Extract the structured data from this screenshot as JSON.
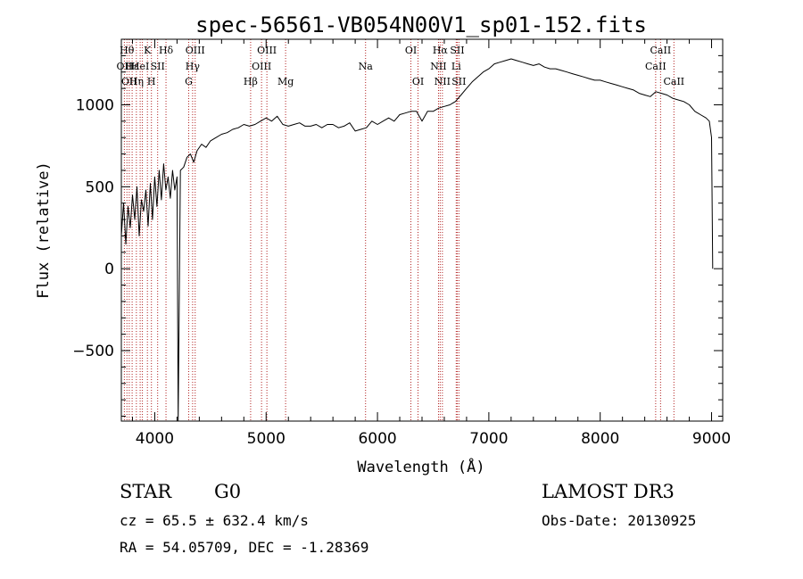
{
  "chart_data": {
    "type": "line",
    "title": "spec-56561-VB054N00V1_sp01-152.fits",
    "xlabel": "Wavelength (Å)",
    "ylabel": "Flux (relative)",
    "xlim": [
      3700,
      9100
    ],
    "ylim": [
      -930,
      1400
    ],
    "x_ticks": [
      4000,
      5000,
      6000,
      7000,
      8000,
      9000
    ],
    "y_ticks": [
      -500,
      0,
      500,
      1000
    ],
    "series": [
      {
        "name": "flux",
        "x": [
          3700,
          3720,
          3740,
          3760,
          3780,
          3800,
          3820,
          3840,
          3860,
          3880,
          3900,
          3920,
          3940,
          3960,
          3980,
          4000,
          4020,
          4040,
          4060,
          4080,
          4100,
          4120,
          4140,
          4160,
          4180,
          4200,
          4210,
          4230,
          4260,
          4290,
          4320,
          4350,
          4380,
          4420,
          4460,
          4500,
          4550,
          4600,
          4650,
          4700,
          4750,
          4800,
          4850,
          4900,
          4950,
          5000,
          5050,
          5100,
          5150,
          5200,
          5250,
          5300,
          5350,
          5400,
          5450,
          5500,
          5550,
          5600,
          5650,
          5700,
          5750,
          5800,
          5850,
          5900,
          5950,
          6000,
          6050,
          6100,
          6150,
          6200,
          6250,
          6300,
          6350,
          6400,
          6450,
          6500,
          6550,
          6600,
          6650,
          6700,
          6750,
          6800,
          6850,
          6900,
          6950,
          7000,
          7050,
          7100,
          7150,
          7200,
          7250,
          7300,
          7350,
          7400,
          7450,
          7500,
          7550,
          7600,
          7650,
          7700,
          7750,
          7800,
          7850,
          7900,
          7950,
          8000,
          8050,
          8100,
          8150,
          8200,
          8250,
          8300,
          8350,
          8400,
          8450,
          8500,
          8550,
          8600,
          8650,
          8700,
          8750,
          8800,
          8850,
          8900,
          8950,
          8980,
          9000,
          9010
        ],
        "y": [
          200,
          400,
          150,
          380,
          250,
          450,
          300,
          500,
          200,
          420,
          350,
          480,
          260,
          520,
          300,
          560,
          380,
          600,
          420,
          640,
          480,
          560,
          430,
          600,
          480,
          560,
          -930,
          600,
          620,
          680,
          700,
          650,
          720,
          760,
          740,
          780,
          800,
          820,
          830,
          850,
          860,
          880,
          870,
          880,
          900,
          920,
          900,
          930,
          880,
          870,
          880,
          890,
          870,
          870,
          880,
          860,
          880,
          880,
          860,
          870,
          890,
          840,
          850,
          860,
          900,
          880,
          900,
          920,
          900,
          940,
          950,
          960,
          960,
          900,
          960,
          960,
          980,
          990,
          1000,
          1020,
          1060,
          1100,
          1140,
          1170,
          1200,
          1220,
          1250,
          1260,
          1270,
          1280,
          1270,
          1260,
          1250,
          1240,
          1250,
          1230,
          1220,
          1220,
          1210,
          1200,
          1190,
          1180,
          1170,
          1160,
          1150,
          1150,
          1140,
          1130,
          1120,
          1110,
          1100,
          1090,
          1070,
          1060,
          1050,
          1080,
          1070,
          1060,
          1040,
          1030,
          1020,
          1000,
          960,
          940,
          920,
          900,
          800,
          0
        ]
      }
    ],
    "lines": [
      {
        "w": 3727,
        "row": 1,
        "label": "OII"
      },
      {
        "w": 3750,
        "row": 0,
        "label": "Hθ"
      },
      {
        "w": 3771,
        "row": 2,
        "label": "OII"
      },
      {
        "w": 3797,
        "row": 1,
        "label": "Hε"
      },
      {
        "w": 3835,
        "row": 2,
        "label": "Hη"
      },
      {
        "w": 3869,
        "row": 1,
        "label": "HeI"
      },
      {
        "w": 3889,
        "row": 2,
        "label": ""
      },
      {
        "w": 3934,
        "row": 0,
        "label": "K"
      },
      {
        "w": 3970,
        "row": 2,
        "label": "H"
      },
      {
        "w": 4026,
        "row": 1,
        "label": "SII"
      },
      {
        "w": 4101,
        "row": 0,
        "label": "Hδ"
      },
      {
        "w": 4305,
        "row": 2,
        "label": "G"
      },
      {
        "w": 4340,
        "row": 1,
        "label": "Hγ"
      },
      {
        "w": 4363,
        "row": 0,
        "label": "OIII"
      },
      {
        "w": 4861,
        "row": 2,
        "label": "Hβ"
      },
      {
        "w": 4959,
        "row": 1,
        "label": "OIII"
      },
      {
        "w": 5007,
        "row": 0,
        "label": "OIII"
      },
      {
        "w": 5175,
        "row": 2,
        "label": "Mg"
      },
      {
        "w": 5893,
        "row": 1,
        "label": "Na"
      },
      {
        "w": 6300,
        "row": 0,
        "label": "OI"
      },
      {
        "w": 6364,
        "row": 2,
        "label": "OI"
      },
      {
        "w": 6548,
        "row": 1,
        "label": "NII"
      },
      {
        "w": 6563,
        "row": 0,
        "label": "Hα"
      },
      {
        "w": 6583,
        "row": 2,
        "label": "NII"
      },
      {
        "w": 6707,
        "row": 1,
        "label": "Li"
      },
      {
        "w": 6716,
        "row": 0,
        "label": "SII"
      },
      {
        "w": 6731,
        "row": 2,
        "label": "SII"
      },
      {
        "w": 8498,
        "row": 1,
        "label": "CaII"
      },
      {
        "w": 8542,
        "row": 0,
        "label": "CaII"
      },
      {
        "w": 8662,
        "row": 2,
        "label": "CaII"
      }
    ]
  },
  "info": {
    "object_class": "STAR",
    "subclass": "G0",
    "survey": "LAMOST DR3",
    "redshift": "cz = 65.5 ± 632.4 km/s",
    "obs_date": "Obs-Date: 20130925",
    "coords": "RA =  54.05709, DEC =  -1.28369"
  },
  "colors": {
    "line_marker": "#b22222",
    "spectrum": "#000000"
  }
}
